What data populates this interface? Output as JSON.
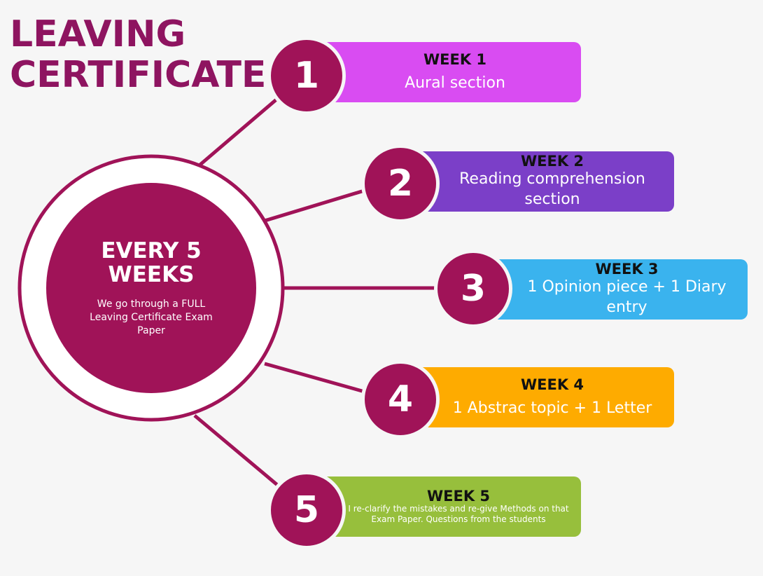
{
  "title": {
    "line1": "LEAVING",
    "line2": "CERTIFICATE"
  },
  "hub": {
    "title_line1": "EVERY 5",
    "title_line2": "WEEKS",
    "description": "We go through a FULL Leaving Certificate Exam Paper"
  },
  "steps": [
    {
      "number": "1",
      "week": "WEEK 1",
      "description": "Aural section",
      "color": "#d94cf2"
    },
    {
      "number": "2",
      "week": "WEEK 2",
      "description": "Reading comprehension section",
      "color": "#7b3fc8"
    },
    {
      "number": "3",
      "week": "WEEK 3",
      "description": "1 Opinion piece + 1 Diary entry",
      "color": "#3ab3ee"
    },
    {
      "number": "4",
      "week": "WEEK 4",
      "description": "1 Abstrac topic + 1 Letter",
      "color": "#feab00"
    },
    {
      "number": "5",
      "week": "WEEK 5",
      "description": "I re-clarify the mistakes and re-give Methods on that Exam Paper. Questions from the students",
      "color": "#97bf3c"
    }
  ],
  "colors": {
    "primary": "#a01358",
    "title": "#8e1460",
    "background": "#f6f6f6"
  }
}
